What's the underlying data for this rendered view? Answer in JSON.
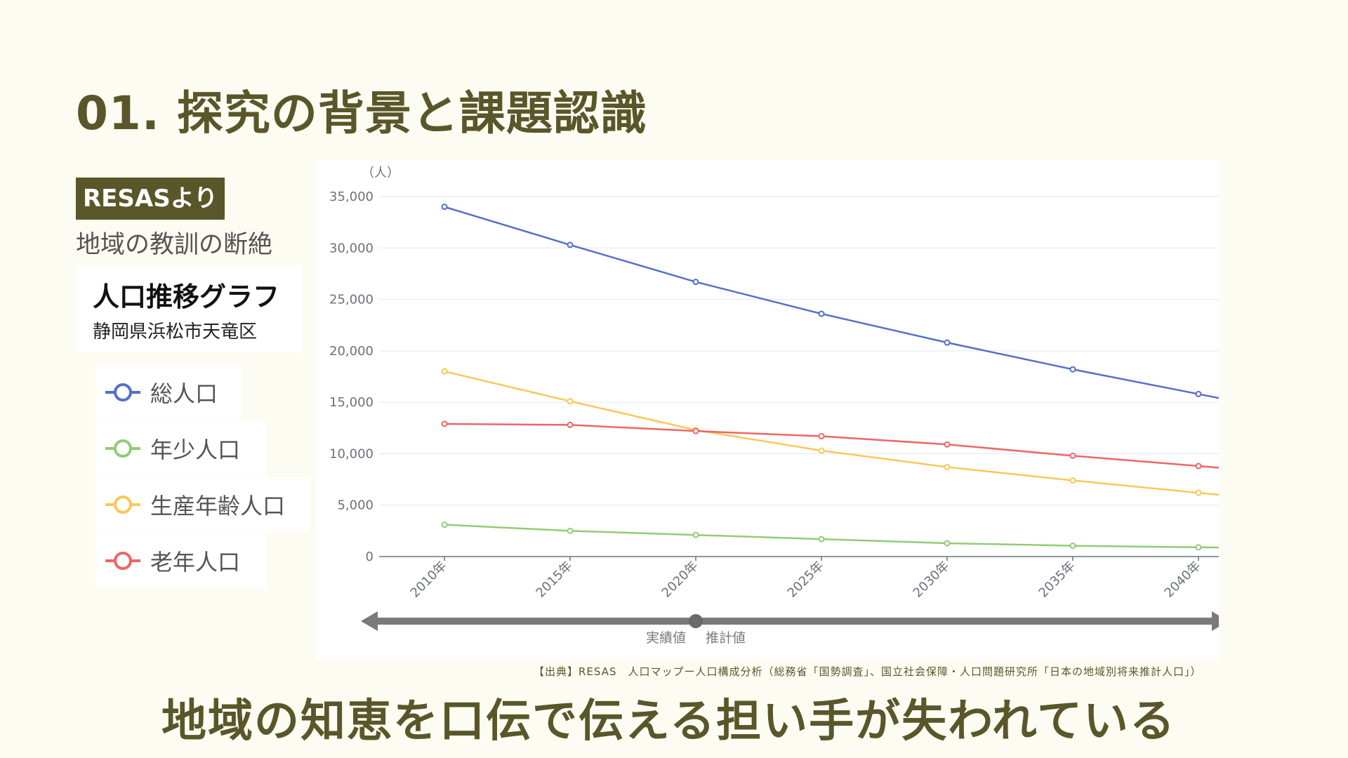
{
  "slide": {
    "title": "01. 探究の背景と課題認識",
    "badge": "RESASより",
    "subtitle": "地域の教訓の断絶",
    "bottom_message": "地域の知恵を口伝で伝える担い手が失われている",
    "source": "【出典】RESAS　人口マップー人口構成分析（総務省「国勢調査」、国立社会保障・人口問題研究所「日本の地域別将来推計人口」）"
  },
  "card": {
    "title": "人口推移グラフ",
    "region": "静岡県浜松市天竜区"
  },
  "legend": {
    "items": [
      {
        "label": "総人口",
        "color": "#5470c6"
      },
      {
        "label": "年少人口",
        "color": "#91cc75"
      },
      {
        "label": "生産年齢人口",
        "color": "#fac858"
      },
      {
        "label": "老年人口",
        "color": "#ee6666"
      }
    ]
  },
  "chart_data": {
    "type": "line",
    "ylabel": "（人）",
    "ylim": [
      0,
      35000
    ],
    "yticks": [
      "35,000",
      "30,000",
      "25,000",
      "20,000",
      "15,000",
      "10,000",
      "5,000",
      "0"
    ],
    "ytick_values": [
      35000,
      30000,
      25000,
      20000,
      15000,
      10000,
      5000,
      0
    ],
    "categories": [
      "2010年",
      "2015年",
      "2020年",
      "2025年",
      "2030年",
      "2035年",
      "2040年"
    ],
    "grid": true,
    "series": [
      {
        "name": "総人口",
        "color": "#5470c6",
        "values": [
          34000,
          30300,
          26700,
          23600,
          20800,
          18200,
          15800
        ]
      },
      {
        "name": "年少人口",
        "color": "#91cc75",
        "values": [
          3100,
          2500,
          2100,
          1700,
          1300,
          1050,
          900
        ]
      },
      {
        "name": "生産年齢人口",
        "color": "#fac858",
        "values": [
          18000,
          15100,
          12300,
          10300,
          8700,
          7400,
          6200
        ]
      },
      {
        "name": "老年人口",
        "color": "#ee6666",
        "values": [
          12900,
          12800,
          12200,
          11700,
          10900,
          9800,
          8800
        ]
      }
    ],
    "period_labels": {
      "actual": "実績値",
      "estimate": "推計値"
    }
  }
}
